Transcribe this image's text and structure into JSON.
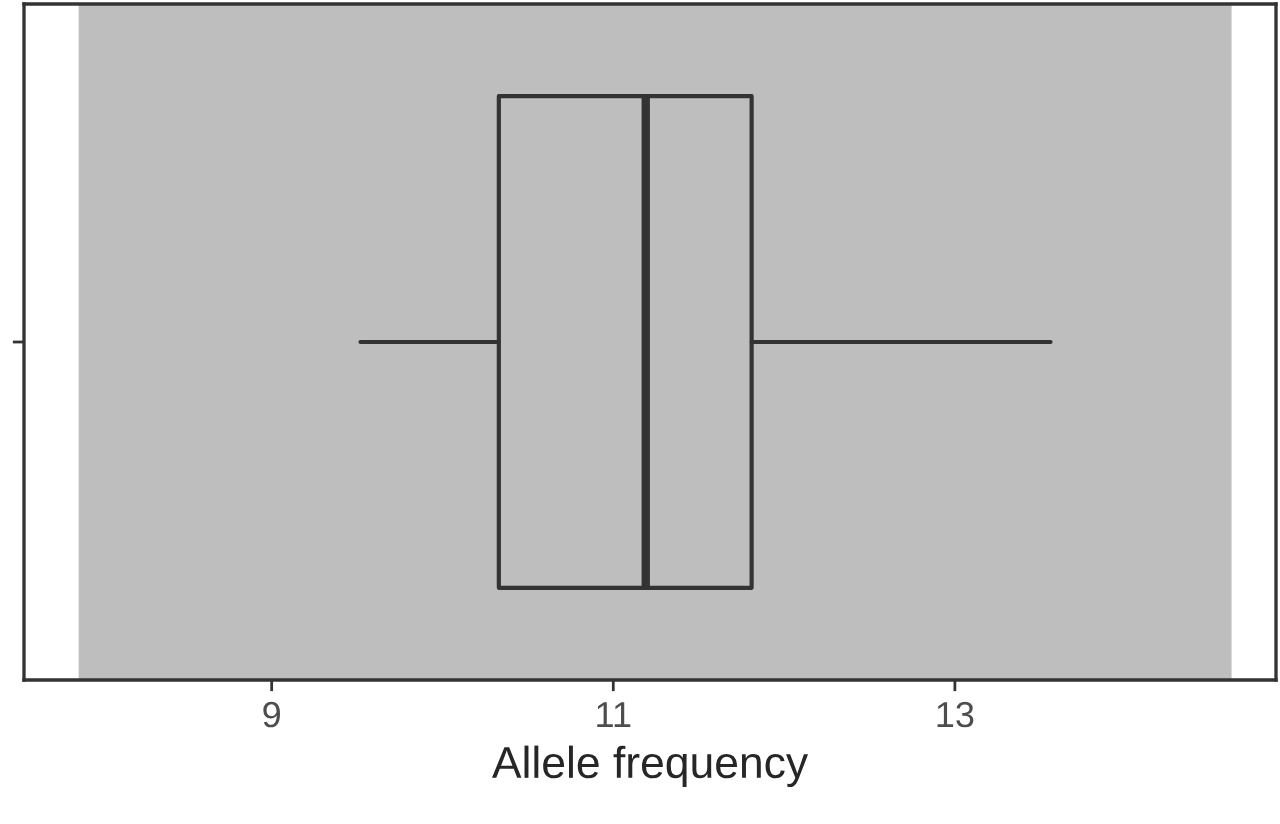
{
  "chart_data": {
    "type": "box",
    "orientation": "horizontal",
    "xlabel": "Allele frequency",
    "categories": [
      null
    ],
    "boxes": [
      {
        "low": 9.52,
        "q1": 10.33,
        "median": 11.19,
        "q3": 11.81,
        "high": 13.56
      }
    ],
    "xlim": [
      7.55,
      14.88
    ],
    "xticks": [
      9,
      11,
      13
    ],
    "bands": [
      {
        "axis": "x",
        "from": 7.87,
        "to": 14.62,
        "color": "#bebebe"
      }
    ],
    "grid": false
  }
}
